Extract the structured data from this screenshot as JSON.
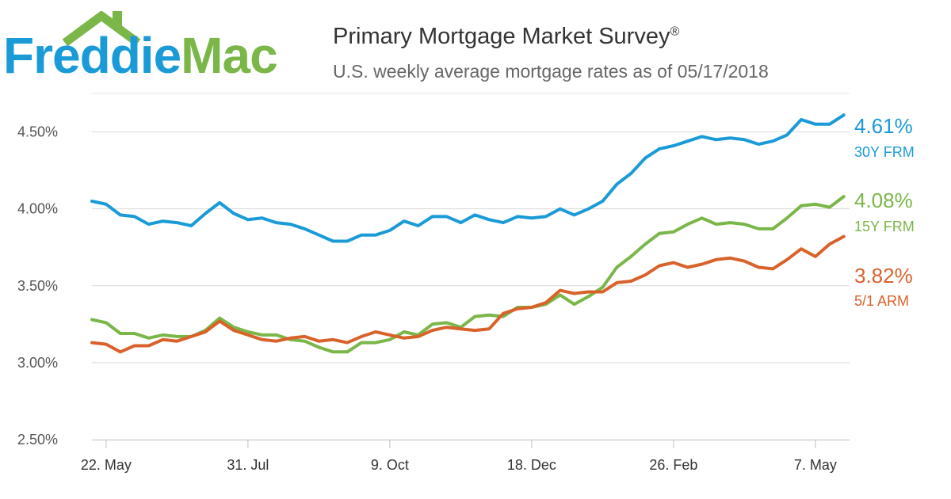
{
  "logo": {
    "part1": "Freddie",
    "part2": "Mac"
  },
  "header": {
    "title": "Primary Mortgage Market Survey",
    "title_mark": "®",
    "subtitle": "U.S. weekly average mortgage rates as of 05/17/2018"
  },
  "colors": {
    "frm30": "#1a9bd7",
    "frm15": "#7ab648",
    "arm51": "#d9622b",
    "grid": "#d9d9d9"
  },
  "chart_data": {
    "type": "line",
    "title": "Primary Mortgage Market Survey",
    "subtitle": "U.S. weekly average mortgage rates as of 05/17/2018",
    "ylim": [
      2.5,
      4.75
    ],
    "yticks": [
      2.5,
      3.0,
      3.5,
      4.0,
      4.5
    ],
    "ytick_labels": [
      "2.50%",
      "3.00%",
      "3.50%",
      "4.00%",
      "4.50%"
    ],
    "xlim_weeks": [
      0,
      105
    ],
    "xticks": [
      {
        "week": 1,
        "label": "22. May"
      },
      {
        "week": 11,
        "label": "31. Jul"
      },
      {
        "week": 21,
        "label": "9. Oct"
      },
      {
        "week": 31,
        "label": "18. Dec"
      },
      {
        "week": 41,
        "label": "26. Feb"
      },
      {
        "week": 51,
        "label": "7. May"
      }
    ],
    "grid": true,
    "series": [
      {
        "name": "30Y FRM",
        "end_label": "4.61%",
        "color": "#1a9bd7",
        "values": [
          4.05,
          4.03,
          3.96,
          3.95,
          3.9,
          3.92,
          3.91,
          3.89,
          3.97,
          4.04,
          3.97,
          3.93,
          3.94,
          3.91,
          3.9,
          3.87,
          3.83,
          3.79,
          3.79,
          3.83,
          3.83,
          3.86,
          3.92,
          3.89,
          3.95,
          3.95,
          3.91,
          3.96,
          3.93,
          3.91,
          3.95,
          3.94,
          3.95,
          4.0,
          3.96,
          4.0,
          4.05,
          4.16,
          4.23,
          4.33,
          4.39,
          4.41,
          4.44,
          4.47,
          4.45,
          4.46,
          4.45,
          4.42,
          4.44,
          4.48,
          4.58,
          4.55,
          4.55,
          4.61
        ]
      },
      {
        "name": "15Y FRM",
        "end_label": "4.08%",
        "color": "#7ab648",
        "values": [
          3.28,
          3.26,
          3.19,
          3.19,
          3.16,
          3.18,
          3.17,
          3.17,
          3.21,
          3.29,
          3.23,
          3.2,
          3.18,
          3.18,
          3.15,
          3.14,
          3.1,
          3.07,
          3.07,
          3.13,
          3.13,
          3.15,
          3.2,
          3.18,
          3.25,
          3.26,
          3.23,
          3.3,
          3.31,
          3.3,
          3.36,
          3.36,
          3.38,
          3.44,
          3.38,
          3.43,
          3.49,
          3.62,
          3.69,
          3.77,
          3.84,
          3.85,
          3.9,
          3.94,
          3.9,
          3.91,
          3.9,
          3.87,
          3.87,
          3.94,
          4.02,
          4.03,
          4.01,
          4.08
        ]
      },
      {
        "name": "5/1 ARM",
        "end_label": "3.82%",
        "color": "#d9622b",
        "values": [
          3.13,
          3.12,
          3.07,
          3.11,
          3.11,
          3.15,
          3.14,
          3.17,
          3.2,
          3.27,
          3.21,
          3.18,
          3.15,
          3.14,
          3.16,
          3.17,
          3.14,
          3.15,
          3.13,
          3.17,
          3.2,
          3.18,
          3.16,
          3.17,
          3.21,
          3.23,
          3.22,
          3.21,
          3.22,
          3.32,
          3.35,
          3.36,
          3.39,
          3.47,
          3.45,
          3.46,
          3.46,
          3.52,
          3.53,
          3.57,
          3.63,
          3.65,
          3.62,
          3.64,
          3.67,
          3.68,
          3.66,
          3.62,
          3.61,
          3.67,
          3.74,
          3.69,
          3.77,
          3.82
        ]
      }
    ]
  }
}
